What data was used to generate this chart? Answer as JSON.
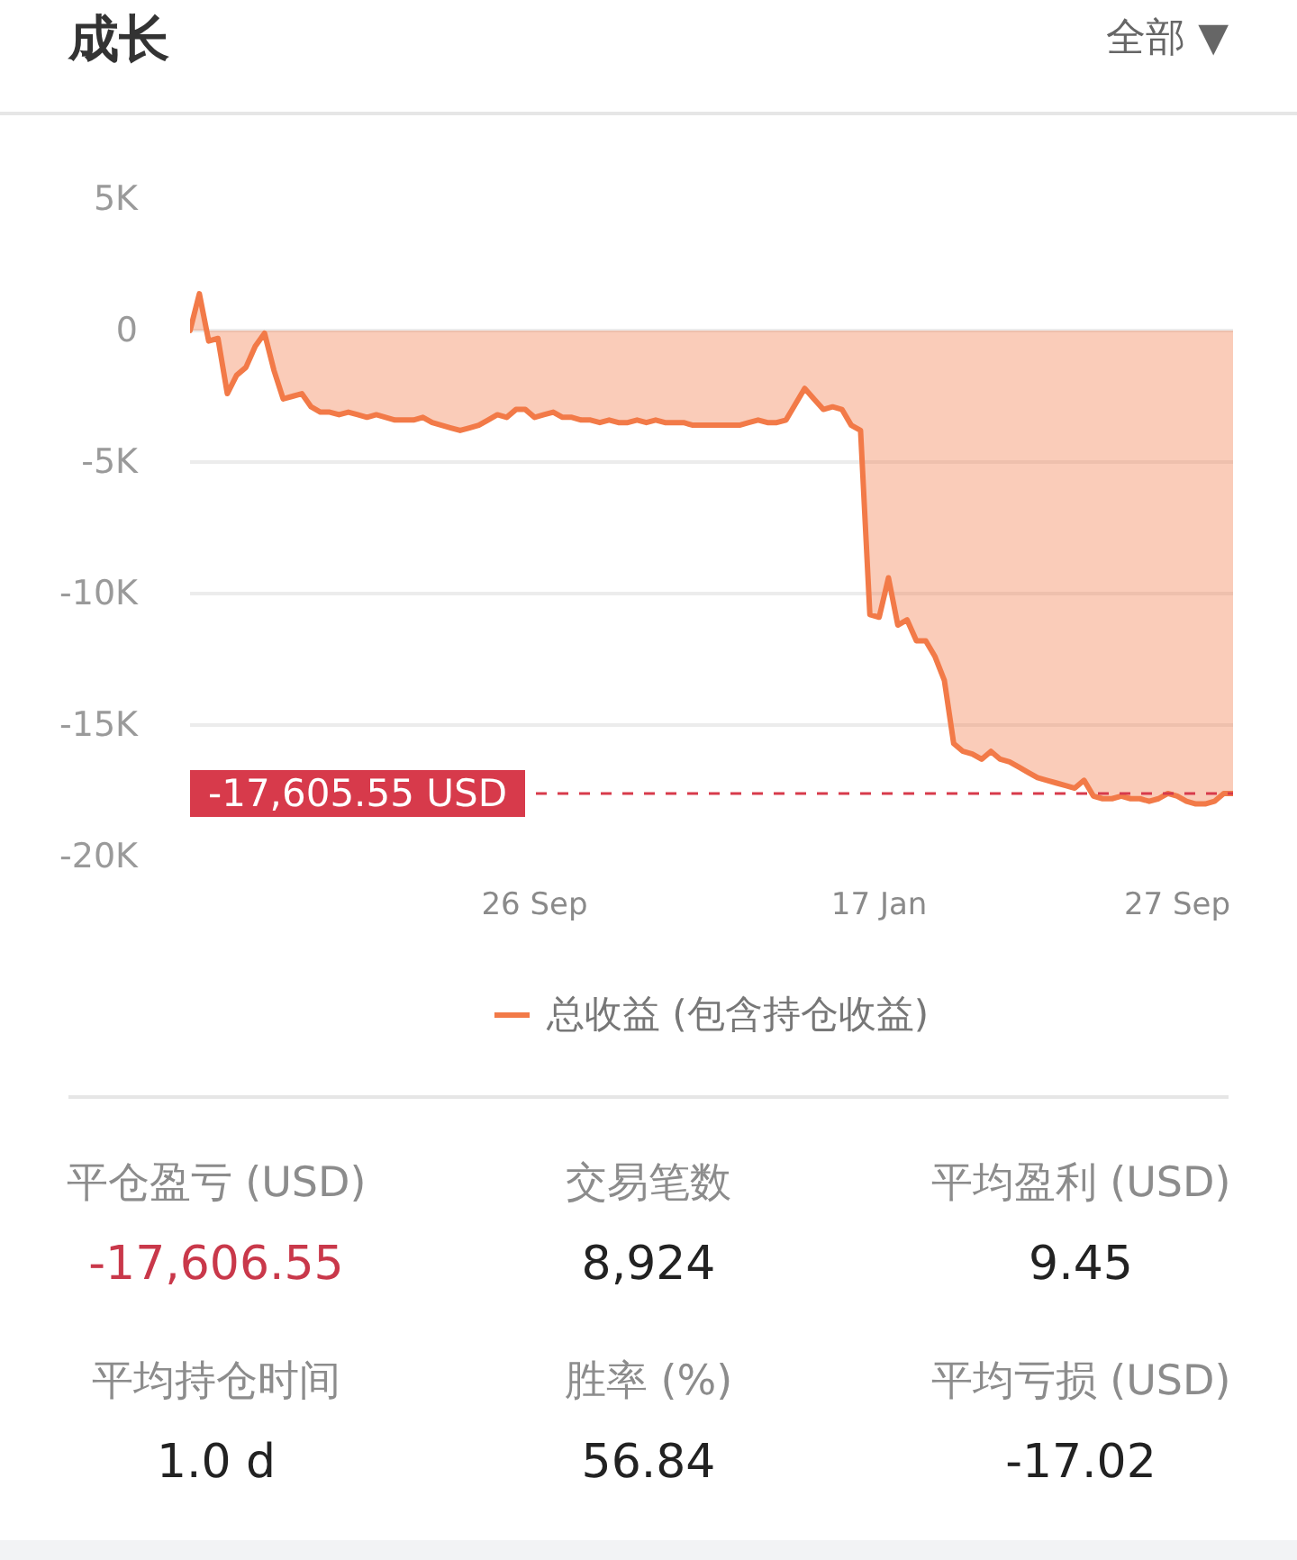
{
  "chart_data": [
    {
      "type": "area",
      "title": "成长",
      "annotations": [
        "全部 ▼"
      ],
      "categories": [
        null,
        null,
        null,
        null,
        null,
        null,
        null,
        null,
        null,
        null,
        null,
        null,
        null,
        null,
        null,
        null,
        null,
        null,
        null,
        null,
        null,
        null,
        null,
        null,
        null,
        null,
        null,
        null,
        null,
        null,
        null,
        null,
        null,
        null,
        null,
        null,
        null,
        "26 Sep",
        null,
        null,
        null,
        null,
        null,
        null,
        null,
        null,
        null,
        null,
        null,
        null,
        null,
        null,
        null,
        null,
        null,
        null,
        null,
        null,
        null,
        null,
        null,
        null,
        null,
        null,
        null,
        null,
        null,
        null,
        null,
        null,
        null,
        null,
        null,
        null,
        "17 Jan",
        null,
        null,
        null,
        null,
        null,
        null,
        null,
        null,
        null,
        null,
        null,
        null,
        null,
        null,
        null,
        null,
        null,
        null,
        null,
        null,
        null,
        null,
        null,
        null,
        null,
        null,
        null,
        null,
        null,
        null,
        null,
        "27 Sep",
        null,
        null,
        null,
        null,
        null,
        null
      ],
      "series": [
        {
          "name": "总收益 (包含持仓收益)",
          "color": "#f27a48",
          "values": [
            0,
            1400,
            -400,
            -300,
            -2400,
            -1700,
            -1400,
            -600,
            -100,
            -1500,
            -2600,
            -2500,
            -2400,
            -2900,
            -3100,
            -3100,
            -3200,
            -3100,
            -3200,
            -3300,
            -3200,
            -3300,
            -3400,
            -3400,
            -3400,
            -3300,
            -3500,
            -3600,
            -3700,
            -3800,
            -3700,
            -3600,
            -3400,
            -3200,
            -3300,
            -3000,
            -3000,
            -3300,
            -3200,
            -3100,
            -3300,
            -3300,
            -3400,
            -3400,
            -3500,
            -3400,
            -3500,
            -3500,
            -3400,
            -3500,
            -3400,
            -3500,
            -3500,
            -3500,
            -3600,
            -3600,
            -3600,
            -3600,
            -3600,
            -3600,
            -3500,
            -3400,
            -3500,
            -3500,
            -3400,
            -2800,
            -2200,
            -2600,
            -3000,
            -2900,
            -3000,
            -3600,
            -3800,
            -10800,
            -10900,
            -9400,
            -11200,
            -11000,
            -11800,
            -11800,
            -12400,
            -13300,
            -15700,
            -16000,
            -16100,
            -16300,
            -16000,
            -16300,
            -16400,
            -16600,
            -16800,
            -17000,
            -17100,
            -17200,
            -17300,
            -17400,
            -17100,
            -17700,
            -17800,
            -17800,
            -17700,
            -17800,
            -17800,
            -17900,
            -17800,
            -17600,
            -17700,
            -17900,
            -18000,
            -18000,
            -17900,
            -17600,
            -17600
          ]
        }
      ],
      "ylim": [
        -20000,
        5000
      ],
      "yticks": [
        {
          "value": 5000,
          "label": "5K"
        },
        0,
        {
          "value": -5000,
          "label": "-5K"
        },
        {
          "value": -10000,
          "label": "-10K"
        },
        {
          "value": -15000,
          "label": "-15K"
        },
        {
          "value": -20000,
          "label": "-20K"
        }
      ],
      "grid": "y",
      "legend": "bottom",
      "ref_lines": [
        {
          "axis": "y",
          "value": -17605.55,
          "label": "-17,605.55 USD",
          "color": "#d73a4b",
          "line_style": "dashed"
        }
      ]
    },
    {
      "type": "other",
      "categories": [
        "平仓盈亏 (USD)",
        "交易笔数",
        "平均盈利 (USD)",
        "平均持仓时间",
        "胜率 (%)",
        "平均亏损 (USD)"
      ],
      "value_labels": [
        "-17,606.55",
        "8,924",
        "9.45",
        "1.0 d",
        "56.84",
        "-17.02"
      ],
      "colors": [
        "#c9384a",
        "#222222",
        "#222222",
        "#222222",
        "#222222",
        "#222222"
      ]
    }
  ]
}
